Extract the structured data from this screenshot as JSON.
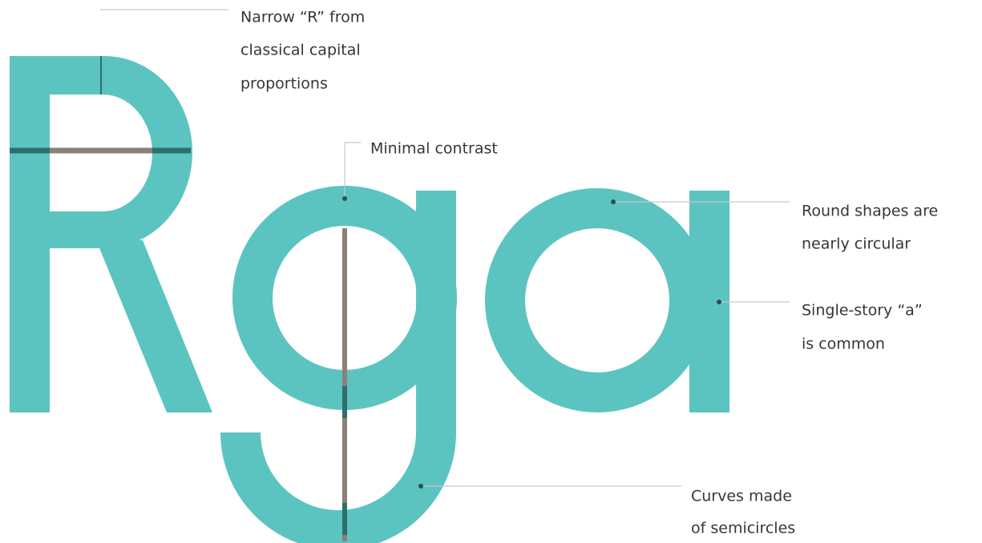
{
  "annotations": [
    {
      "lines": [
        "Narrow “R” from",
        "classical capital",
        "proportions"
      ]
    },
    {
      "lines": [
        "Minimal contrast"
      ]
    },
    {
      "lines": [
        "Round shapes are",
        "nearly circular"
      ]
    },
    {
      "lines": [
        "Single-story “a”",
        "is common"
      ]
    },
    {
      "lines": [
        "Curves made",
        "of semicircles"
      ]
    }
  ]
}
